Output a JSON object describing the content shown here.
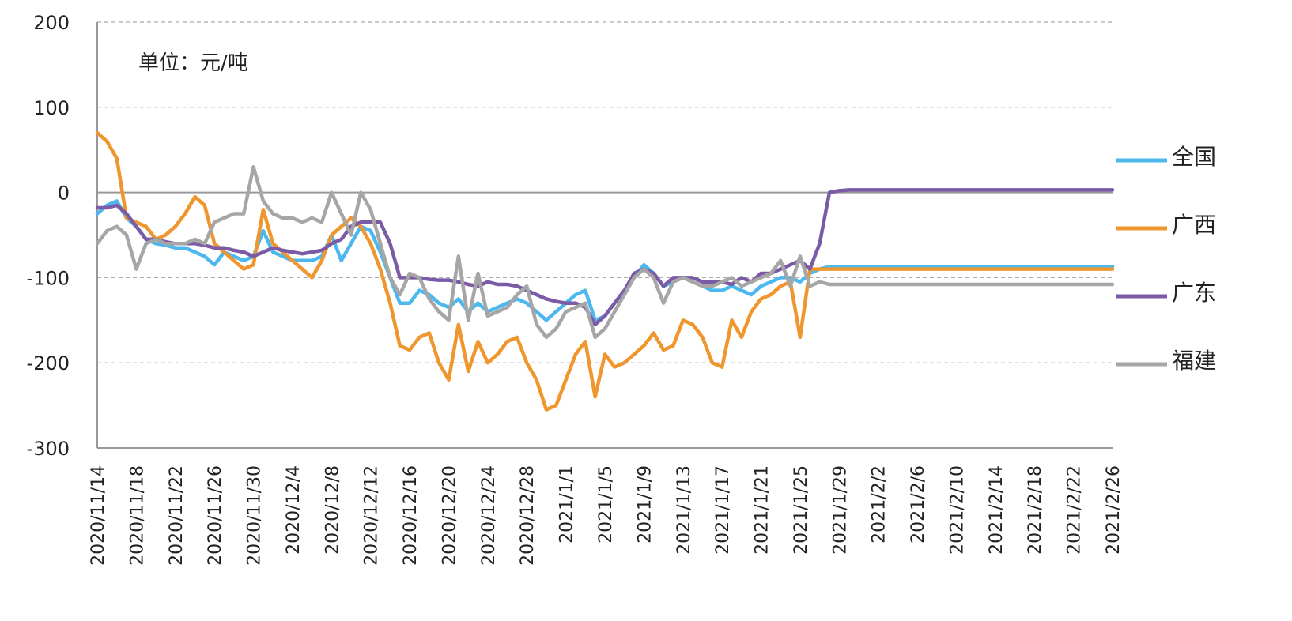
{
  "chart_data": {
    "type": "line",
    "annotation": "单位：元/吨",
    "categories": [
      "2020/11/14",
      null,
      null,
      null,
      "2020/11/18",
      null,
      null,
      null,
      "2020/11/22",
      null,
      null,
      null,
      "2020/11/26",
      null,
      null,
      null,
      "2020/11/30",
      null,
      null,
      null,
      "2020/12/4",
      null,
      null,
      null,
      "2020/12/8",
      null,
      null,
      null,
      "2020/12/12",
      null,
      null,
      null,
      "2020/12/16",
      null,
      null,
      null,
      "2020/12/20",
      null,
      null,
      null,
      "2020/12/24",
      null,
      null,
      null,
      "2020/12/28",
      null,
      null,
      null,
      "2021/1/1",
      null,
      null,
      null,
      "2021/1/5",
      null,
      null,
      null,
      "2021/1/9",
      null,
      null,
      null,
      "2021/1/13",
      null,
      null,
      null,
      "2021/1/17",
      null,
      null,
      null,
      "2021/1/21",
      null,
      null,
      null,
      "2021/1/25",
      null,
      null,
      null,
      "2021/1/29",
      null,
      null,
      null,
      "2021/2/2",
      null,
      null,
      null,
      "2021/2/6",
      null,
      null,
      null,
      "2021/2/10",
      null,
      null,
      null,
      "2021/2/14",
      null,
      null,
      null,
      "2021/2/18",
      null,
      null,
      null,
      "2021/2/22",
      null,
      null,
      null,
      "2021/2/26"
    ],
    "series": [
      {
        "name": "全国",
        "color": "#4db8ee",
        "values": [
          -25,
          -15,
          -10,
          -30,
          -40,
          -55,
          -60,
          -62,
          -65,
          -65,
          -70,
          -75,
          -85,
          -70,
          -75,
          -80,
          -75,
          -45,
          -70,
          -75,
          -80,
          -80,
          -80,
          -75,
          -50,
          -80,
          -60,
          -40,
          -45,
          -70,
          -100,
          -130,
          -130,
          -115,
          -120,
          -130,
          -135,
          -125,
          -140,
          -130,
          -140,
          -135,
          -130,
          -125,
          -130,
          -140,
          -150,
          -140,
          -130,
          -120,
          -115,
          -150,
          -145,
          -130,
          -115,
          -100,
          -85,
          -95,
          -110,
          -105,
          -100,
          -105,
          -110,
          -115,
          -115,
          -110,
          -115,
          -120,
          -110,
          -105,
          -100,
          -100,
          -105,
          -95,
          -90,
          -87,
          -87,
          -87,
          -87,
          -87,
          -87,
          -87,
          -87,
          -87,
          -87,
          -87,
          -87,
          -87,
          -87,
          -87,
          -87,
          -87,
          -87,
          -87,
          -87,
          -87,
          -87,
          -87,
          -87,
          -87,
          -87,
          -87,
          -87,
          -87,
          -87
        ]
      },
      {
        "name": "广西",
        "color": "#f0962e",
        "values": [
          70,
          60,
          40,
          -30,
          -35,
          -40,
          -55,
          -50,
          -40,
          -25,
          -5,
          -15,
          -60,
          -70,
          -80,
          -90,
          -85,
          -20,
          -60,
          -70,
          -80,
          -90,
          -100,
          -80,
          -50,
          -40,
          -30,
          -40,
          -60,
          -90,
          -130,
          -180,
          -185,
          -170,
          -165,
          -200,
          -220,
          -155,
          -210,
          -175,
          -200,
          -190,
          -175,
          -170,
          -200,
          -220,
          -255,
          -250,
          -220,
          -190,
          -175,
          -240,
          -190,
          -205,
          -200,
          -190,
          -180,
          -165,
          -185,
          -180,
          -150,
          -155,
          -170,
          -200,
          -205,
          -150,
          -170,
          -140,
          -125,
          -120,
          -110,
          -105,
          -170,
          -90,
          -90,
          -90,
          -90,
          -90,
          -90,
          -90,
          -90,
          -90,
          -90,
          -90,
          -90,
          -90,
          -90,
          -90,
          -90,
          -90,
          -90,
          -90,
          -90,
          -90,
          -90,
          -90,
          -90,
          -90,
          -90,
          -90,
          -90,
          -90,
          -90,
          -90,
          -90
        ]
      },
      {
        "name": "广东",
        "color": "#7b5aa6",
        "values": [
          -18,
          -18,
          -15,
          -25,
          -40,
          -55,
          -55,
          -58,
          -60,
          -60,
          -60,
          -62,
          -65,
          -65,
          -68,
          -70,
          -75,
          -70,
          -65,
          -68,
          -70,
          -72,
          -70,
          -68,
          -60,
          -55,
          -40,
          -35,
          -35,
          -35,
          -60,
          -100,
          -100,
          -100,
          -102,
          -103,
          -103,
          -105,
          -108,
          -110,
          -105,
          -108,
          -108,
          -110,
          -115,
          -120,
          -125,
          -128,
          -130,
          -130,
          -135,
          -155,
          -145,
          -130,
          -115,
          -95,
          -90,
          -95,
          -110,
          -100,
          -100,
          -100,
          -105,
          -105,
          -105,
          -108,
          -100,
          -105,
          -95,
          -95,
          -90,
          -85,
          -80,
          -90,
          -60,
          0,
          2,
          3,
          3,
          3,
          3,
          3,
          3,
          3,
          3,
          3,
          3,
          3,
          3,
          3,
          3,
          3,
          3,
          3,
          3,
          3,
          3,
          3,
          3,
          3,
          3,
          3,
          3,
          3,
          3
        ]
      },
      {
        "name": "福建",
        "color": "#a6a6a6",
        "values": [
          -60,
          -45,
          -40,
          -50,
          -90,
          -60,
          -55,
          -60,
          -60,
          -60,
          -55,
          -60,
          -35,
          -30,
          -25,
          -25,
          30,
          -10,
          -25,
          -30,
          -30,
          -35,
          -30,
          -35,
          0,
          -25,
          -50,
          0,
          -20,
          -60,
          -100,
          -120,
          -95,
          -100,
          -125,
          -140,
          -150,
          -75,
          -150,
          -95,
          -145,
          -140,
          -135,
          -120,
          -110,
          -155,
          -170,
          -160,
          -140,
          -135,
          -130,
          -170,
          -160,
          -140,
          -120,
          -100,
          -90,
          -100,
          -130,
          -105,
          -100,
          -105,
          -110,
          -110,
          -105,
          -100,
          -110,
          -105,
          -100,
          -95,
          -80,
          -110,
          -75,
          -110,
          -105,
          -108,
          -108,
          -108,
          -108,
          -108,
          -108,
          -108,
          -108,
          -108,
          -108,
          -108,
          -108,
          -108,
          -108,
          -108,
          -108,
          -108,
          -108,
          -108,
          -108,
          -108,
          -108,
          -108,
          -108,
          -108,
          -108,
          -108,
          -108,
          -108,
          -108
        ]
      }
    ],
    "ylim": [
      -300,
      200
    ],
    "yticks": [
      200,
      100,
      0,
      -100,
      -200,
      -300
    ],
    "grid": true,
    "legend": "right"
  }
}
